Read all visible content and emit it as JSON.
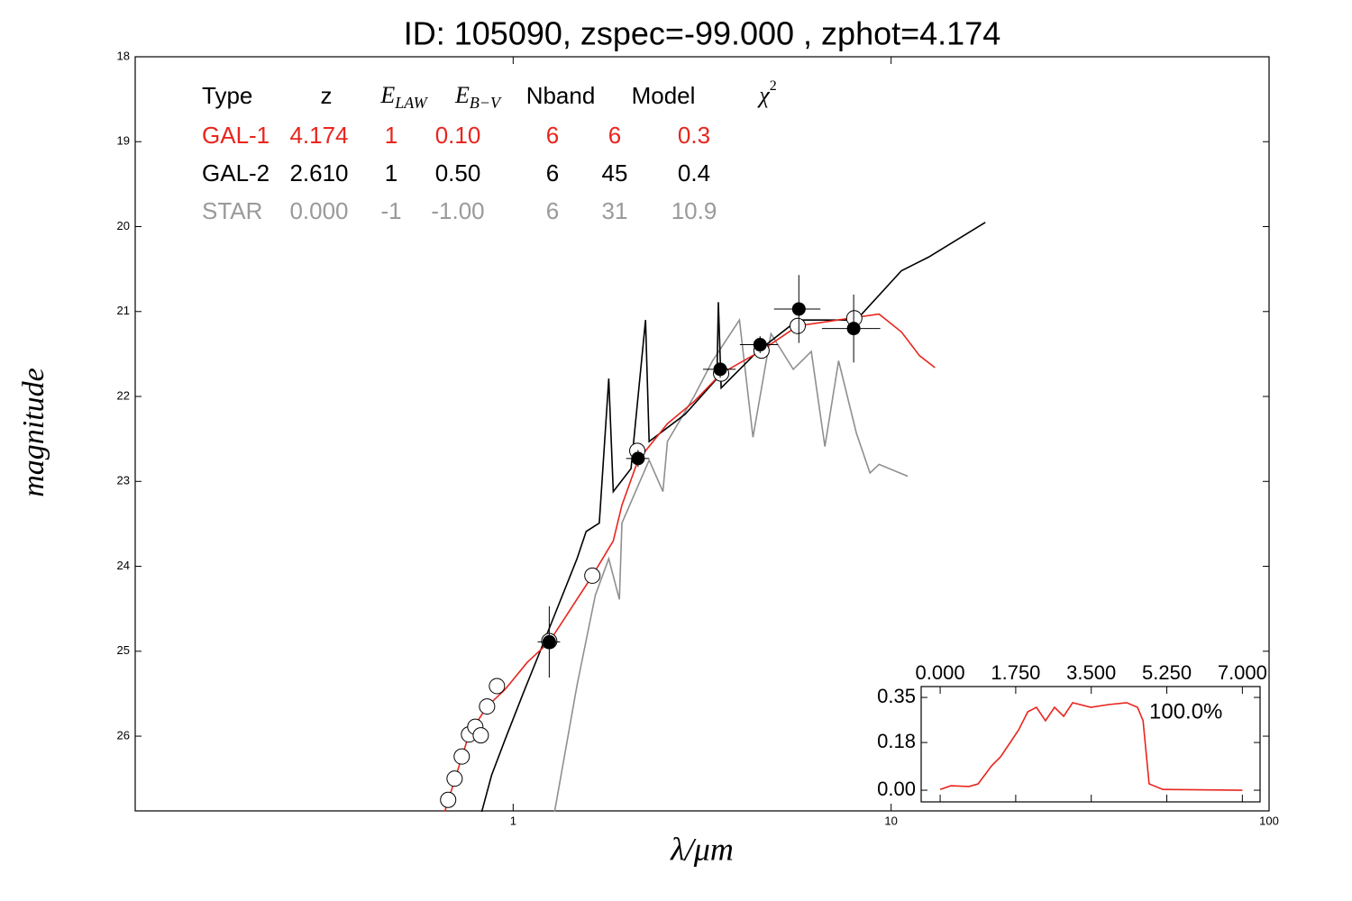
{
  "chart_data": [
    {
      "type": "line",
      "title": "ID:  105090, zspec=-99.000 , zphot=4.174",
      "x_label": "λ/μm",
      "y_label": "magnitude",
      "xscale": "log",
      "xlim": [
        0.1,
        100
      ],
      "xticks": [
        1,
        10,
        100
      ],
      "ylim": [
        26.88,
        18
      ],
      "yticks": [
        18,
        19,
        20,
        21,
        22,
        23,
        24,
        25,
        26
      ],
      "table": {
        "header": [
          {
            "text": "Type"
          },
          {
            "text": "z"
          },
          {
            "text": "E",
            "sub": "LAW"
          },
          {
            "text": "E",
            "sub": "B−V"
          },
          {
            "text": "Nband"
          },
          {
            "text": "Model"
          },
          {
            "text": "χ",
            "sup": "2"
          }
        ],
        "rows": [
          {
            "color": "#e8251e",
            "cells": [
              "GAL-1",
              "4.174",
              "1",
              "0.10",
              "6",
              "6",
              "0.3"
            ]
          },
          {
            "color": "#000000",
            "cells": [
              "GAL-2",
              "2.610",
              "1",
              "0.50",
              "6",
              "45",
              "0.4"
            ]
          },
          {
            "color": "#9a9a9a",
            "cells": [
              "STAR",
              "0.000",
              "-1",
              "-1.00",
              "6",
              "31",
              "10.9"
            ]
          }
        ]
      },
      "series": [
        {
          "color": "#8f8f8f",
          "x": [
            1.287,
            1.476,
            1.65,
            1.79,
            1.91,
            1.94,
            2.29,
            2.49,
            2.56,
            3.01,
            3.37,
            3.97,
            4.31,
            4.81,
            5.51,
            6.15,
            6.68,
            7.26,
            8.09,
            8.79,
            9.29,
            11.07
          ],
          "values": [
            26.89,
            25.4,
            24.34,
            23.91,
            24.39,
            23.49,
            22.75,
            23.12,
            22.53,
            22.0,
            21.58,
            21.1,
            22.48,
            21.26,
            21.68,
            21.47,
            22.59,
            21.58,
            22.43,
            22.9,
            22.8,
            22.94
          ]
        },
        {
          "color": "#000000",
          "x": [
            0.826,
            0.877,
            0.952,
            1.06,
            1.186,
            1.323,
            1.476,
            1.56,
            1.69,
            1.79,
            1.84,
            2.05,
            2.24,
            2.29,
            2.85,
            3.46,
            3.49,
            3.55,
            4.43,
            5.66,
            8.09,
            10.65,
            12.56,
            17.75
          ],
          "values": [
            26.89,
            26.46,
            26.04,
            25.51,
            24.97,
            24.44,
            23.91,
            23.59,
            23.49,
            21.79,
            23.12,
            22.85,
            21.1,
            22.53,
            22.21,
            21.79,
            20.89,
            21.9,
            21.47,
            21.1,
            21.1,
            20.52,
            20.36,
            19.95
          ]
        },
        {
          "color": "#e8251e",
          "x": [
            0.659,
            0.764,
            0.853,
            0.952,
            1.09,
            1.246,
            1.397,
            1.62,
            1.84,
            1.94,
            2.14,
            2.56,
            3.01,
            3.55,
            4.5,
            5.66,
            8.0,
            9.29,
            10.65,
            11.89,
            13.06
          ],
          "values": [
            26.89,
            25.98,
            25.65,
            25.45,
            25.13,
            24.89,
            24.55,
            24.11,
            23.7,
            23.28,
            22.75,
            22.32,
            22.06,
            21.73,
            21.47,
            21.17,
            21.07,
            21.03,
            21.24,
            21.52,
            21.66
          ]
        }
      ],
      "points": [
        {
          "marker": "open",
          "x": [
            0.673,
            0.7,
            0.731,
            0.764,
            0.794,
            0.821,
            0.853,
            0.906,
            1.246,
            1.62,
            2.13,
            3.55,
            4.54,
            5.66,
            7.99
          ],
          "values": [
            26.75,
            26.5,
            26.24,
            25.98,
            25.89,
            25.99,
            25.65,
            25.41,
            24.88,
            24.11,
            22.64,
            21.73,
            21.46,
            21.17,
            21.08
          ]
        },
        {
          "marker": "filled",
          "x": [
            1.246,
            2.14,
            3.53,
            4.5,
            5.7,
            7.96
          ],
          "values": [
            24.89,
            22.73,
            21.68,
            21.39,
            20.97,
            21.2
          ],
          "xerr": [
            0.085,
            0.15,
            0.35,
            0.52,
            0.8,
            1.4
          ],
          "yerr": [
            0.42,
            0.1,
            0.1,
            0.1,
            0.4,
            0.4
          ]
        }
      ]
    },
    {
      "type": "line",
      "annotation": "100.0%",
      "color": "#e8251e",
      "xlim": [
        -0.44,
        7.41
      ],
      "xticks": [
        {
          "value": 0,
          "label": "0.000"
        },
        {
          "value": 1.75,
          "label": "1.750"
        },
        {
          "value": 3.5,
          "label": "3.500"
        },
        {
          "value": 5.25,
          "label": "5.250"
        },
        {
          "value": 7,
          "label": "7.000"
        }
      ],
      "ylim": [
        -0.044,
        0.391
      ],
      "yticks": [
        {
          "value": 0,
          "label": "0.00"
        },
        {
          "value": 0.18,
          "label": "0.18"
        },
        0.35
      ],
      "x": [
        0,
        0.25,
        0.67,
        0.88,
        1.19,
        1.4,
        1.61,
        1.82,
        2.03,
        2.23,
        2.44,
        2.65,
        2.86,
        3.07,
        3.49,
        3.9,
        4.32,
        4.57,
        4.7,
        4.84,
        5.16,
        7
      ],
      "values": [
        0.003,
        0.017,
        0.014,
        0.024,
        0.092,
        0.126,
        0.177,
        0.228,
        0.296,
        0.313,
        0.262,
        0.313,
        0.279,
        0.33,
        0.313,
        0.323,
        0.33,
        0.313,
        0.262,
        0.024,
        0.003,
        0.0
      ]
    }
  ]
}
